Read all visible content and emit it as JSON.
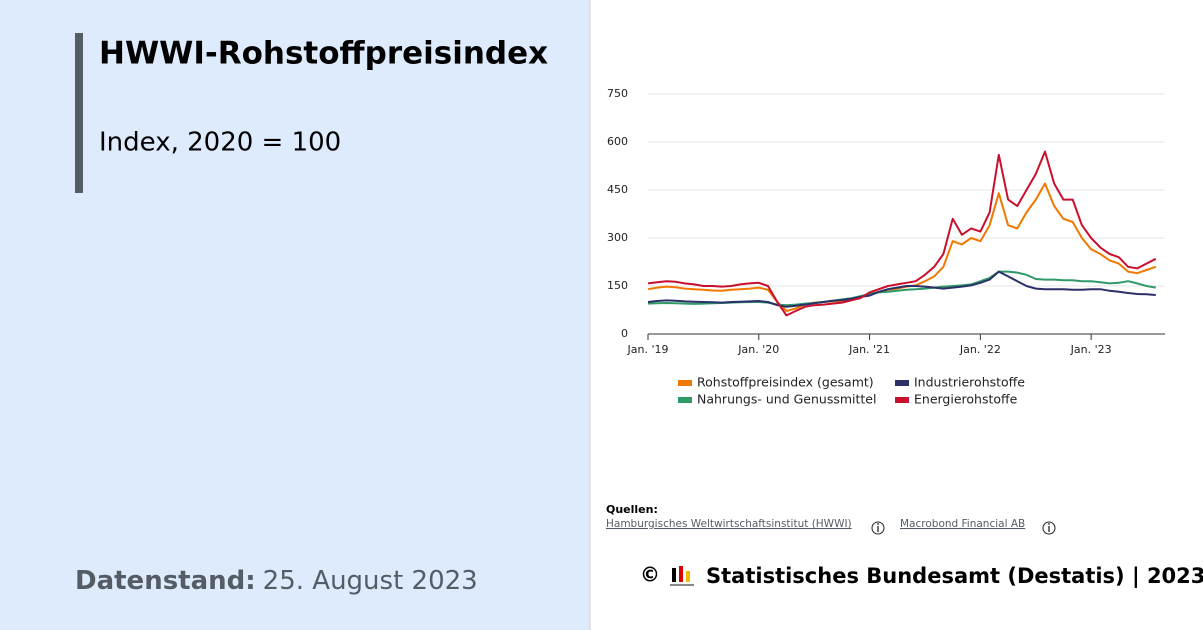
{
  "header": {
    "title": "HWWI-Rohstoffpreisindex",
    "subtitle": "Index, 2020 = 100"
  },
  "datenstand": {
    "label": "Datenstand:",
    "value": "25. August 2023"
  },
  "sources": {
    "label": "Quellen:",
    "links": [
      "Hamburgisches Weltwirtschaftsinstitut (HWWI)",
      "Macrobond Financial AB"
    ]
  },
  "footer": {
    "copyright": "©",
    "text": "Statistisches Bundesamt (Destatis) | 2023"
  },
  "chart_data": {
    "type": "line",
    "x": [
      "2019-01",
      "2019-02",
      "2019-03",
      "2019-04",
      "2019-05",
      "2019-06",
      "2019-07",
      "2019-08",
      "2019-09",
      "2019-10",
      "2019-11",
      "2019-12",
      "2020-01",
      "2020-02",
      "2020-03",
      "2020-04",
      "2020-05",
      "2020-06",
      "2020-07",
      "2020-08",
      "2020-09",
      "2020-10",
      "2020-11",
      "2020-12",
      "2021-01",
      "2021-02",
      "2021-03",
      "2021-04",
      "2021-05",
      "2021-06",
      "2021-07",
      "2021-08",
      "2021-09",
      "2021-10",
      "2021-11",
      "2021-12",
      "2022-01",
      "2022-02",
      "2022-03",
      "2022-04",
      "2022-05",
      "2022-06",
      "2022-07",
      "2022-08",
      "2022-09",
      "2022-10",
      "2022-11",
      "2022-12",
      "2023-01",
      "2023-02",
      "2023-03",
      "2023-04",
      "2023-05",
      "2023-06",
      "2023-07",
      "2023-08"
    ],
    "series": [
      {
        "name": "Rohstoffpreisindex (gesamt)",
        "color": "#f07800",
        "values": [
          140,
          145,
          148,
          146,
          142,
          140,
          138,
          136,
          135,
          138,
          140,
          142,
          145,
          138,
          100,
          72,
          80,
          92,
          98,
          100,
          102,
          104,
          108,
          118,
          125,
          132,
          138,
          142,
          148,
          152,
          165,
          180,
          210,
          290,
          280,
          300,
          290,
          340,
          440,
          340,
          330,
          380,
          420,
          470,
          400,
          360,
          350,
          300,
          265,
          250,
          230,
          220,
          195,
          190,
          200,
          210
        ]
      },
      {
        "name": "Industrierohstoffe",
        "color": "#2b3068",
        "values": [
          100,
          103,
          105,
          104,
          102,
          101,
          100,
          99,
          98,
          100,
          101,
          102,
          103,
          100,
          90,
          85,
          88,
          92,
          96,
          100,
          104,
          106,
          110,
          116,
          120,
          132,
          140,
          145,
          150,
          150,
          148,
          145,
          142,
          145,
          148,
          152,
          160,
          170,
          195,
          180,
          165,
          150,
          142,
          140,
          140,
          140,
          138,
          138,
          140,
          140,
          135,
          132,
          128,
          125,
          124,
          122
        ]
      },
      {
        "name": "Nahrungs- und Genussmittel",
        "color": "#2e9a68",
        "values": [
          95,
          96,
          97,
          96,
          95,
          94,
          95,
          96,
          97,
          98,
          99,
          100,
          100,
          98,
          92,
          90,
          92,
          95,
          97,
          100,
          104,
          108,
          112,
          118,
          125,
          130,
          132,
          135,
          138,
          140,
          142,
          145,
          148,
          150,
          152,
          155,
          165,
          175,
          195,
          195,
          192,
          185,
          172,
          170,
          170,
          168,
          168,
          165,
          165,
          162,
          158,
          160,
          165,
          158,
          150,
          145
        ]
      },
      {
        "name": "Energierohstoffe",
        "color": "#c8102e",
        "values": [
          158,
          162,
          165,
          163,
          158,
          155,
          150,
          150,
          148,
          150,
          155,
          158,
          160,
          150,
          100,
          58,
          72,
          85,
          90,
          92,
          95,
          98,
          105,
          112,
          130,
          140,
          150,
          155,
          160,
          165,
          185,
          210,
          250,
          360,
          310,
          330,
          320,
          380,
          560,
          420,
          400,
          450,
          500,
          570,
          470,
          420,
          420,
          340,
          300,
          270,
          250,
          240,
          210,
          205,
          220,
          235
        ]
      }
    ],
    "xlim": [
      "2019-01",
      "2023-09"
    ],
    "xticks": [
      {
        "value": "2019-01",
        "label": "Jan. '19"
      },
      {
        "value": "2020-01",
        "label": "Jan. '20"
      },
      {
        "value": "2021-01",
        "label": "Jan. '21"
      },
      {
        "value": "2022-01",
        "label": "Jan. '22"
      },
      {
        "value": "2023-01",
        "label": "Jan. '23"
      }
    ],
    "ylim": [
      0,
      750
    ],
    "yticks": [
      0,
      150,
      300,
      450,
      600,
      750
    ],
    "grid": true,
    "legend": "bottom"
  }
}
